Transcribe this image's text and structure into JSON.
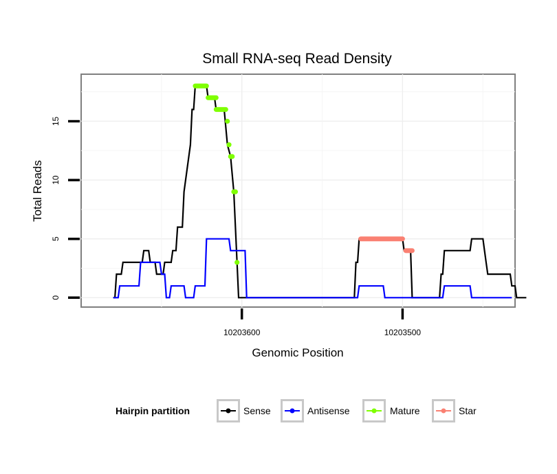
{
  "chart_data": {
    "type": "line",
    "title": "Small RNA-seq Read Density",
    "xlabel": "Genomic Position",
    "ylabel": "Total Reads",
    "x_direction": "reversed",
    "xlim": [
      10203700,
      10203430
    ],
    "ylim": [
      -0.8,
      19
    ],
    "xticks": [
      10203600,
      10203500
    ],
    "xtick_labels": [
      "10203600",
      "10203500"
    ],
    "yticks": [
      0,
      5,
      10,
      15
    ],
    "ytick_labels": [
      "0",
      "5",
      "10",
      "15"
    ],
    "legend": {
      "title": "Hairpin partition",
      "position": "bottom",
      "items": [
        {
          "label": "Sense",
          "color": "#000000"
        },
        {
          "label": "Antisense",
          "color": "#0000ff"
        },
        {
          "label": "Mature",
          "color": "#7fff00"
        },
        {
          "label": "Star",
          "color": "#fa8072"
        }
      ]
    },
    "series": [
      {
        "name": "Sense",
        "color": "#000000",
        "points": [
          [
            10203680,
            0
          ],
          [
            10203679,
            0
          ],
          [
            10203678,
            2
          ],
          [
            10203675,
            2
          ],
          [
            10203674,
            3
          ],
          [
            10203662,
            3
          ],
          [
            10203661,
            4
          ],
          [
            10203658,
            4
          ],
          [
            10203657,
            3
          ],
          [
            10203654,
            3
          ],
          [
            10203653,
            2
          ],
          [
            10203649,
            2
          ],
          [
            10203648,
            3
          ],
          [
            10203644,
            3
          ],
          [
            10203643,
            4
          ],
          [
            10203641,
            4
          ],
          [
            10203640,
            6
          ],
          [
            10203637,
            6
          ],
          [
            10203636,
            9
          ],
          [
            10203632,
            13
          ],
          [
            10203631,
            16
          ],
          [
            10203630,
            16
          ],
          [
            10203629,
            18
          ],
          [
            10203622,
            18
          ],
          [
            10203621,
            17
          ],
          [
            10203617,
            17
          ],
          [
            10203616,
            16
          ],
          [
            10203611,
            16
          ],
          [
            10203609,
            13
          ],
          [
            10203607,
            12
          ],
          [
            10203605,
            9
          ],
          [
            10203603,
            3
          ],
          [
            10203602,
            0
          ],
          [
            10203530,
            0
          ],
          [
            10203529,
            3
          ],
          [
            10203528,
            3
          ],
          [
            10203527,
            5
          ],
          [
            10203500,
            5
          ],
          [
            10203499,
            4
          ],
          [
            10203495,
            4
          ],
          [
            10203494,
            0
          ],
          [
            10203477,
            0
          ],
          [
            10203476,
            2
          ],
          [
            10203475,
            2
          ],
          [
            10203474,
            4
          ],
          [
            10203458,
            4
          ],
          [
            10203457,
            5
          ],
          [
            10203450,
            5
          ],
          [
            10203449,
            4
          ],
          [
            10203448,
            3
          ],
          [
            10203447,
            2
          ],
          [
            10203433,
            2
          ],
          [
            10203432,
            1
          ],
          [
            10203430,
            1
          ],
          [
            10203429,
            0
          ],
          [
            10203423,
            0
          ]
        ]
      },
      {
        "name": "Antisense",
        "color": "#0000ff",
        "points": [
          [
            10203680,
            0
          ],
          [
            10203677,
            0
          ],
          [
            10203676,
            1
          ],
          [
            10203664,
            1
          ],
          [
            10203663,
            3
          ],
          [
            10203651,
            3
          ],
          [
            10203650,
            2
          ],
          [
            10203648,
            2
          ],
          [
            10203647,
            0
          ],
          [
            10203645,
            0
          ],
          [
            10203644,
            1
          ],
          [
            10203636,
            1
          ],
          [
            10203635,
            0
          ],
          [
            10203630,
            0
          ],
          [
            10203629,
            1
          ],
          [
            10203623,
            1
          ],
          [
            10203622,
            5
          ],
          [
            10203608,
            5
          ],
          [
            10203607,
            4
          ],
          [
            10203598,
            4
          ],
          [
            10203597,
            0
          ],
          [
            10203528,
            0
          ],
          [
            10203527,
            1
          ],
          [
            10203512,
            1
          ],
          [
            10203511,
            0
          ],
          [
            10203475,
            0
          ],
          [
            10203474,
            1
          ],
          [
            10203458,
            1
          ],
          [
            10203457,
            0
          ],
          [
            10203432,
            0
          ]
        ]
      },
      {
        "name": "Mature",
        "color": "#7fff00",
        "segments": [
          [
            10203622,
            10203629,
            18
          ],
          [
            10203616,
            10203621,
            17
          ],
          [
            10203610,
            10203616,
            16
          ]
        ],
        "points": [
          [
            10203609,
            15
          ],
          [
            10203608,
            13
          ],
          [
            10203607,
            12
          ],
          [
            10203606,
            12
          ],
          [
            10203605,
            9
          ],
          [
            10203604,
            9
          ],
          [
            10203603,
            3
          ]
        ]
      },
      {
        "name": "Star",
        "color": "#fa8072",
        "segments": [
          [
            10203500,
            10203526,
            5
          ],
          [
            10203494,
            10203498,
            4
          ]
        ],
        "points": []
      }
    ]
  }
}
